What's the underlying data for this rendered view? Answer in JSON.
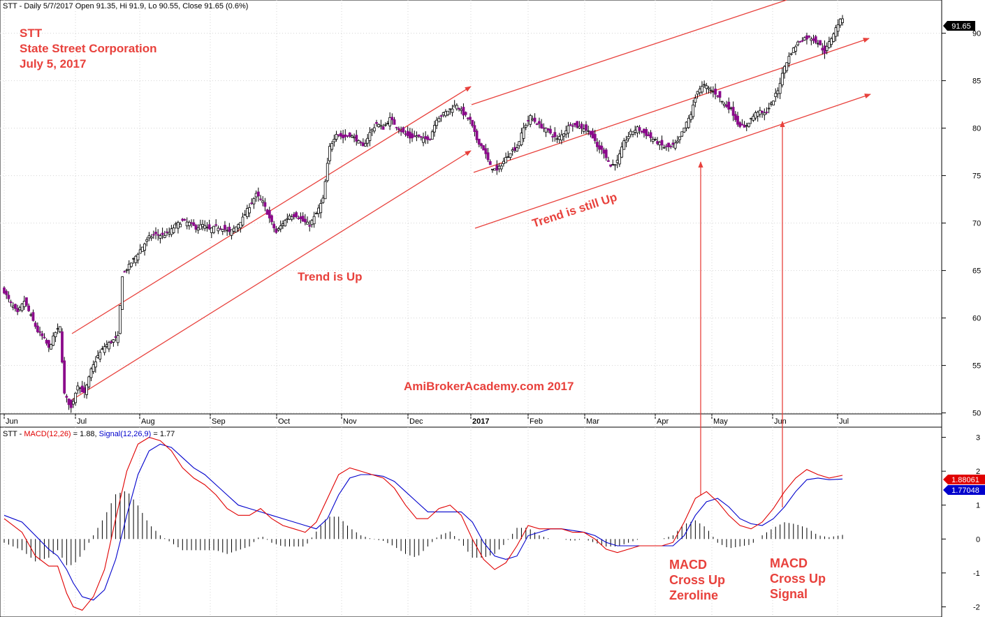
{
  "header": {
    "price_title": "STT - Daily 5/7/2017 Open 91.35, Hi 91.9, Lo 90.55, Close 91.65 (0.6%)",
    "macd_title_prefix": "STT - ",
    "macd_title_macd": "MACD(12,26)",
    "macd_title_mid": " = 1.88, ",
    "macd_title_signal": "Signal(12,26,9)",
    "macd_title_suffix": " = 1.77"
  },
  "annotations": {
    "ticker": "STT",
    "company": "State Street Corporation",
    "date": "July 5, 2017",
    "trend_up": "Trend is Up",
    "trend_still_up": "Trend is still Up",
    "watermark": "AmiBrokerAcademy.com  2017",
    "macd_cross_zero": [
      "MACD",
      "Cross Up",
      "Zeroline"
    ],
    "macd_cross_signal": [
      "MACD",
      "Cross Up",
      "Signal"
    ]
  },
  "colors": {
    "annotation": "#e8413c",
    "up_candle": "#000000",
    "down_candle": "#8b0a8b",
    "macd_line": "#e00000",
    "signal_line": "#0000cc",
    "histogram": "#000000"
  },
  "chart_data": [
    {
      "type": "candlestick",
      "ylim": [
        48.5,
        93.5
      ],
      "yticks": [
        50,
        55,
        60,
        65,
        70,
        75,
        80,
        85,
        90
      ],
      "last_value_label": "91.65",
      "last_value": 91.65,
      "month_labels": [
        "Jun",
        "Jul",
        "Aug",
        "Sep",
        "Oct",
        "Nov",
        "Dec",
        "2017",
        "Feb",
        "Mar",
        "Apr",
        "May",
        "Jun",
        "Jul"
      ],
      "close_path": [
        [
          0,
          62.8
        ],
        [
          3,
          61.5
        ],
        [
          6,
          60.5
        ],
        [
          9,
          61.8
        ],
        [
          12,
          60.2
        ],
        [
          15,
          58.6
        ],
        [
          18,
          57.8
        ],
        [
          20,
          56.8
        ],
        [
          23,
          58.5
        ],
        [
          25,
          59.0
        ],
        [
          27,
          52.0
        ],
        [
          30,
          50.5
        ],
        [
          33,
          53.0
        ],
        [
          36,
          52.0
        ],
        [
          39,
          54.5
        ],
        [
          42,
          56.0
        ],
        [
          45,
          57.0
        ],
        [
          48,
          57.5
        ],
        [
          51,
          58.0
        ],
        [
          53,
          64.5
        ],
        [
          56,
          65.5
        ],
        [
          59,
          66.5
        ],
        [
          62,
          67.5
        ],
        [
          65,
          68.5
        ],
        [
          68,
          68.8
        ],
        [
          71,
          68.7
        ],
        [
          74,
          69.0
        ],
        [
          77,
          69.8
        ],
        [
          80,
          70.2
        ],
        [
          83,
          70.0
        ],
        [
          86,
          69.5
        ],
        [
          89,
          69.8
        ],
        [
          92,
          69.3
        ],
        [
          95,
          69.6
        ],
        [
          98,
          69.5
        ],
        [
          101,
          69.0
        ],
        [
          104,
          69.6
        ],
        [
          107,
          70.5
        ],
        [
          110,
          71.8
        ],
        [
          113,
          73.0
        ],
        [
          116,
          72.2
        ],
        [
          119,
          70.5
        ],
        [
          122,
          69.0
        ],
        [
          125,
          70.0
        ],
        [
          128,
          70.8
        ],
        [
          131,
          70.8
        ],
        [
          134,
          70.2
        ],
        [
          137,
          69.8
        ],
        [
          140,
          71.0
        ],
        [
          143,
          72.5
        ],
        [
          146,
          78.0
        ],
        [
          149,
          79.5
        ],
        [
          152,
          79.0
        ],
        [
          155,
          79.3
        ],
        [
          158,
          78.8
        ],
        [
          161,
          78.0
        ],
        [
          164,
          79.5
        ],
        [
          167,
          80.5
        ],
        [
          170,
          80.0
        ],
        [
          173,
          81.0
        ],
        [
          176,
          80.2
        ],
        [
          179,
          79.5
        ],
        [
          182,
          79.0
        ],
        [
          185,
          79.2
        ],
        [
          188,
          78.8
        ],
        [
          191,
          79.0
        ],
        [
          194,
          81.0
        ],
        [
          197,
          81.5
        ],
        [
          200,
          82.0
        ],
        [
          203,
          82.5
        ],
        [
          206,
          81.5
        ],
        [
          209,
          80.8
        ],
        [
          212,
          78.8
        ],
        [
          215,
          77.8
        ],
        [
          218,
          76.0
        ],
        [
          221,
          75.5
        ],
        [
          224,
          76.5
        ],
        [
          227,
          77.5
        ],
        [
          230,
          78.0
        ],
        [
          233,
          80.0
        ],
        [
          236,
          81.2
        ],
        [
          239,
          80.5
        ],
        [
          242,
          80.0
        ],
        [
          245,
          79.5
        ],
        [
          248,
          78.8
        ],
        [
          251,
          79.5
        ],
        [
          254,
          80.5
        ],
        [
          257,
          80.2
        ],
        [
          260,
          80.0
        ],
        [
          263,
          79.5
        ],
        [
          266,
          78.0
        ],
        [
          269,
          77.5
        ],
        [
          272,
          76.0
        ],
        [
          275,
          76.5
        ],
        [
          278,
          78.5
        ],
        [
          281,
          79.5
        ],
        [
          284,
          80.0
        ],
        [
          287,
          79.5
        ],
        [
          290,
          79.0
        ],
        [
          293,
          78.5
        ],
        [
          296,
          78.0
        ],
        [
          299,
          78.0
        ],
        [
          302,
          78.5
        ],
        [
          305,
          80.0
        ],
        [
          308,
          81.5
        ],
        [
          311,
          84.0
        ],
        [
          314,
          84.5
        ],
        [
          317,
          84.0
        ],
        [
          320,
          83.5
        ],
        [
          323,
          82.5
        ],
        [
          326,
          82.0
        ],
        [
          329,
          80.5
        ],
        [
          332,
          80.0
        ],
        [
          335,
          81.0
        ],
        [
          338,
          81.8
        ],
        [
          341,
          81.5
        ],
        [
          344,
          82.5
        ],
        [
          347,
          84.0
        ],
        [
          350,
          86.5
        ],
        [
          353,
          88.0
        ],
        [
          356,
          89.0
        ],
        [
          359,
          89.5
        ],
        [
          362,
          89.5
        ],
        [
          365,
          89.0
        ],
        [
          368,
          88.0
        ],
        [
          371,
          89.5
        ],
        [
          374,
          91.0
        ],
        [
          376,
          91.65
        ]
      ]
    },
    {
      "type": "line",
      "title": "MACD(12,26) = 1.88, Signal(12,26,9) = 1.77",
      "ylim": [
        -2.3,
        3.3
      ],
      "yticks": [
        -2,
        -1,
        0,
        1,
        2,
        3
      ],
      "last_value_labels": [
        "1.88061",
        "1.77048"
      ],
      "series": [
        {
          "name": "MACD(12,26)",
          "points": [
            [
              0,
              0.6
            ],
            [
              8,
              0.2
            ],
            [
              14,
              -0.5
            ],
            [
              20,
              -0.8
            ],
            [
              24,
              -0.8
            ],
            [
              28,
              -1.6
            ],
            [
              31,
              -2.0
            ],
            [
              35,
              -2.1
            ],
            [
              40,
              -1.7
            ],
            [
              45,
              -0.9
            ],
            [
              50,
              0.6
            ],
            [
              55,
              2.0
            ],
            [
              60,
              2.8
            ],
            [
              65,
              3.0
            ],
            [
              70,
              2.9
            ],
            [
              75,
              2.6
            ],
            [
              80,
              2.1
            ],
            [
              85,
              1.8
            ],
            [
              90,
              1.6
            ],
            [
              95,
              1.3
            ],
            [
              100,
              0.9
            ],
            [
              105,
              0.7
            ],
            [
              110,
              0.7
            ],
            [
              115,
              0.9
            ],
            [
              120,
              0.6
            ],
            [
              125,
              0.4
            ],
            [
              130,
              0.3
            ],
            [
              135,
              0.2
            ],
            [
              140,
              0.5
            ],
            [
              145,
              1.2
            ],
            [
              150,
              1.9
            ],
            [
              155,
              2.1
            ],
            [
              160,
              2.0
            ],
            [
              165,
              1.9
            ],
            [
              170,
              1.8
            ],
            [
              175,
              1.5
            ],
            [
              180,
              1.0
            ],
            [
              185,
              0.6
            ],
            [
              190,
              0.6
            ],
            [
              195,
              0.9
            ],
            [
              200,
              1.0
            ],
            [
              205,
              0.7
            ],
            [
              210,
              0.0
            ],
            [
              215,
              -0.6
            ],
            [
              220,
              -0.9
            ],
            [
              225,
              -0.7
            ],
            [
              230,
              -0.2
            ],
            [
              235,
              0.4
            ],
            [
              240,
              0.3
            ],
            [
              245,
              0.3
            ],
            [
              250,
              0.3
            ],
            [
              255,
              0.2
            ],
            [
              260,
              0.2
            ],
            [
              265,
              0.0
            ],
            [
              270,
              -0.3
            ],
            [
              275,
              -0.4
            ],
            [
              280,
              -0.3
            ],
            [
              285,
              -0.2
            ],
            [
              290,
              -0.2
            ],
            [
              295,
              -0.2
            ],
            [
              300,
              -0.1
            ],
            [
              305,
              0.5
            ],
            [
              310,
              1.2
            ],
            [
              315,
              1.4
            ],
            [
              320,
              1.1
            ],
            [
              325,
              0.7
            ],
            [
              330,
              0.4
            ],
            [
              335,
              0.3
            ],
            [
              340,
              0.5
            ],
            [
              345,
              0.9
            ],
            [
              350,
              1.4
            ],
            [
              355,
              1.8
            ],
            [
              360,
              2.05
            ],
            [
              365,
              1.9
            ],
            [
              370,
              1.8
            ],
            [
              376,
              1.88
            ]
          ]
        },
        {
          "name": "Signal(12,26,9)",
          "points": [
            [
              0,
              0.7
            ],
            [
              8,
              0.5
            ],
            [
              14,
              0.1
            ],
            [
              20,
              -0.3
            ],
            [
              24,
              -0.5
            ],
            [
              28,
              -0.9
            ],
            [
              31,
              -1.3
            ],
            [
              35,
              -1.7
            ],
            [
              40,
              -1.8
            ],
            [
              45,
              -1.5
            ],
            [
              50,
              -0.6
            ],
            [
              55,
              0.7
            ],
            [
              60,
              1.9
            ],
            [
              65,
              2.6
            ],
            [
              70,
              2.8
            ],
            [
              75,
              2.7
            ],
            [
              80,
              2.4
            ],
            [
              85,
              2.1
            ],
            [
              90,
              1.9
            ],
            [
              95,
              1.6
            ],
            [
              100,
              1.3
            ],
            [
              105,
              1.0
            ],
            [
              110,
              0.9
            ],
            [
              115,
              0.8
            ],
            [
              120,
              0.7
            ],
            [
              125,
              0.6
            ],
            [
              130,
              0.5
            ],
            [
              135,
              0.4
            ],
            [
              140,
              0.3
            ],
            [
              145,
              0.6
            ],
            [
              150,
              1.3
            ],
            [
              155,
              1.8
            ],
            [
              160,
              1.9
            ],
            [
              165,
              1.9
            ],
            [
              170,
              1.85
            ],
            [
              175,
              1.7
            ],
            [
              180,
              1.4
            ],
            [
              185,
              1.1
            ],
            [
              190,
              0.8
            ],
            [
              195,
              0.8
            ],
            [
              200,
              0.8
            ],
            [
              205,
              0.8
            ],
            [
              210,
              0.5
            ],
            [
              215,
              -0.1
            ],
            [
              220,
              -0.5
            ],
            [
              225,
              -0.6
            ],
            [
              230,
              -0.5
            ],
            [
              235,
              0.1
            ],
            [
              240,
              0.2
            ],
            [
              245,
              0.3
            ],
            [
              250,
              0.3
            ],
            [
              255,
              0.25
            ],
            [
              260,
              0.2
            ],
            [
              265,
              0.1
            ],
            [
              270,
              -0.1
            ],
            [
              275,
              -0.2
            ],
            [
              280,
              -0.2
            ],
            [
              285,
              -0.2
            ],
            [
              290,
              -0.2
            ],
            [
              295,
              -0.2
            ],
            [
              300,
              -0.2
            ],
            [
              305,
              0.1
            ],
            [
              310,
              0.7
            ],
            [
              315,
              1.1
            ],
            [
              320,
              1.2
            ],
            [
              325,
              0.95
            ],
            [
              330,
              0.6
            ],
            [
              335,
              0.45
            ],
            [
              340,
              0.4
            ],
            [
              345,
              0.6
            ],
            [
              350,
              0.95
            ],
            [
              355,
              1.4
            ],
            [
              360,
              1.75
            ],
            [
              365,
              1.8
            ],
            [
              370,
              1.75
            ],
            [
              376,
              1.77
            ]
          ]
        }
      ]
    }
  ]
}
